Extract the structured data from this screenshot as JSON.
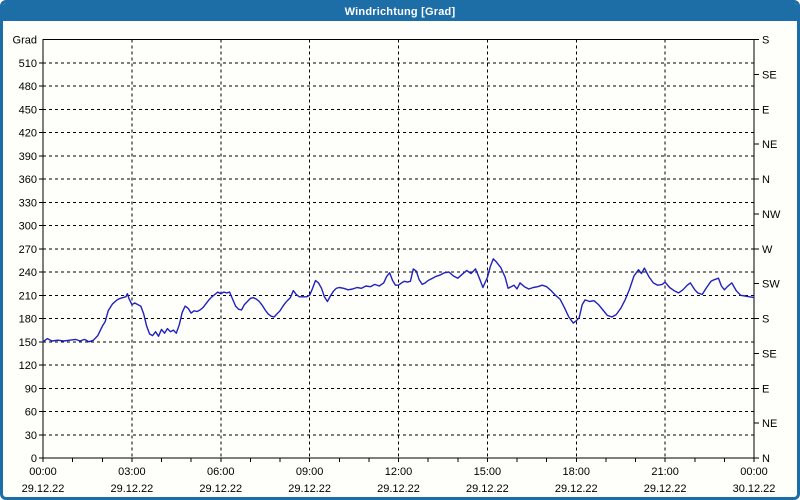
{
  "window": {
    "title": "Windrichtung [Grad]"
  },
  "colors": {
    "frame": "#1d6da6",
    "titlebar_bg": "#1d6da6",
    "title_text": "#ffffff",
    "plot_bg": "#fefefa",
    "axis": "#000000",
    "grid": "#000000",
    "label_text": "#000000",
    "series_line": "#2122bd"
  },
  "chart_data": {
    "type": "line",
    "title": "Windrichtung [Grad]",
    "grid": "dashed",
    "legend": "none",
    "y_axis_left": {
      "label": "Grad",
      "min": 0,
      "max": 540,
      "tick_step": 30
    },
    "y_axis_right": {
      "tick_step": 45,
      "labels_top_to_bottom": [
        "S",
        "SE",
        "E",
        "NE",
        "N",
        "NW",
        "W",
        "SW",
        "S",
        "SE",
        "E",
        "NE",
        "N"
      ]
    },
    "x_axis": {
      "min_hours": 0,
      "max_hours": 24,
      "major_step_hours": 3,
      "minor_tick_hours": 1,
      "major_labels": [
        {
          "time": "00:00",
          "date": "29.12.22"
        },
        {
          "time": "03:00",
          "date": "29.12.22"
        },
        {
          "time": "06:00",
          "date": "29.12.22"
        },
        {
          "time": "09:00",
          "date": "29.12.22"
        },
        {
          "time": "12:00",
          "date": "29.12.22"
        },
        {
          "time": "15:00",
          "date": "29.12.22"
        },
        {
          "time": "18:00",
          "date": "29.12.22"
        },
        {
          "time": "21:00",
          "date": "29.12.22"
        },
        {
          "time": "00:00",
          "date": "30.12.22"
        }
      ]
    },
    "series": [
      {
        "name": "Windrichtung",
        "unit": "Grad",
        "color": "#2122bd",
        "points": [
          [
            0,
            150
          ],
          [
            0.15,
            154
          ],
          [
            0.3,
            151
          ],
          [
            0.5,
            152
          ],
          [
            0.7,
            151
          ],
          [
            0.9,
            152
          ],
          [
            1.1,
            153
          ],
          [
            1.25,
            151
          ],
          [
            1.4,
            153
          ],
          [
            1.55,
            150
          ],
          [
            1.7,
            152
          ],
          [
            1.85,
            158
          ],
          [
            2,
            170
          ],
          [
            2.1,
            176
          ],
          [
            2.2,
            190
          ],
          [
            2.35,
            199
          ],
          [
            2.5,
            204
          ],
          [
            2.6,
            206
          ],
          [
            2.7,
            207
          ],
          [
            2.8,
            208
          ],
          [
            2.85,
            212
          ],
          [
            2.9,
            206
          ],
          [
            3,
            198
          ],
          [
            3.1,
            200
          ],
          [
            3.2,
            198
          ],
          [
            3.3,
            196
          ],
          [
            3.4,
            186
          ],
          [
            3.5,
            170
          ],
          [
            3.6,
            160
          ],
          [
            3.7,
            158
          ],
          [
            3.8,
            163
          ],
          [
            3.9,
            157
          ],
          [
            4,
            166
          ],
          [
            4.1,
            161
          ],
          [
            4.2,
            167
          ],
          [
            4.3,
            163
          ],
          [
            4.4,
            165
          ],
          [
            4.5,
            161
          ],
          [
            4.6,
            172
          ],
          [
            4.7,
            188
          ],
          [
            4.8,
            196
          ],
          [
            4.9,
            193
          ],
          [
            5,
            187
          ],
          [
            5.1,
            190
          ],
          [
            5.2,
            189
          ],
          [
            5.3,
            191
          ],
          [
            5.4,
            194
          ],
          [
            5.5,
            199
          ],
          [
            5.6,
            204
          ],
          [
            5.7,
            208
          ],
          [
            5.8,
            211
          ],
          [
            5.9,
            214
          ],
          [
            6,
            212
          ],
          [
            6.1,
            214
          ],
          [
            6.2,
            213
          ],
          [
            6.3,
            214
          ],
          [
            6.4,
            205
          ],
          [
            6.5,
            196
          ],
          [
            6.6,
            192
          ],
          [
            6.7,
            191
          ],
          [
            6.8,
            198
          ],
          [
            6.9,
            202
          ],
          [
            7,
            206
          ],
          [
            7.1,
            207
          ],
          [
            7.2,
            205
          ],
          [
            7.3,
            202
          ],
          [
            7.4,
            197
          ],
          [
            7.5,
            191
          ],
          [
            7.6,
            186
          ],
          [
            7.7,
            183
          ],
          [
            7.8,
            182
          ],
          [
            7.9,
            186
          ],
          [
            8,
            190
          ],
          [
            8.1,
            196
          ],
          [
            8.2,
            201
          ],
          [
            8.3,
            205
          ],
          [
            8.35,
            207
          ],
          [
            8.45,
            216
          ],
          [
            8.55,
            211
          ],
          [
            8.65,
            208
          ],
          [
            8.8,
            208
          ],
          [
            8.9,
            208
          ],
          [
            9,
            210
          ],
          [
            9.1,
            219
          ],
          [
            9.2,
            229
          ],
          [
            9.3,
            226
          ],
          [
            9.4,
            219
          ],
          [
            9.5,
            208
          ],
          [
            9.6,
            202
          ],
          [
            9.7,
            209
          ],
          [
            9.8,
            215
          ],
          [
            9.9,
            219
          ],
          [
            10,
            220
          ],
          [
            10.15,
            219
          ],
          [
            10.3,
            217
          ],
          [
            10.45,
            218
          ],
          [
            10.6,
            220
          ],
          [
            10.75,
            219
          ],
          [
            10.9,
            222
          ],
          [
            11.05,
            221
          ],
          [
            11.2,
            224
          ],
          [
            11.35,
            222
          ],
          [
            11.5,
            226
          ],
          [
            11.6,
            234
          ],
          [
            11.7,
            239
          ],
          [
            11.8,
            229
          ],
          [
            11.9,
            223
          ],
          [
            12,
            223
          ],
          [
            12.1,
            226
          ],
          [
            12.2,
            228
          ],
          [
            12.3,
            227
          ],
          [
            12.4,
            228
          ],
          [
            12.5,
            244
          ],
          [
            12.6,
            241
          ],
          [
            12.7,
            230
          ],
          [
            12.8,
            224
          ],
          [
            12.9,
            226
          ],
          [
            13,
            229
          ],
          [
            13.1,
            231
          ],
          [
            13.25,
            234
          ],
          [
            13.4,
            236
          ],
          [
            13.55,
            239
          ],
          [
            13.7,
            240
          ],
          [
            13.85,
            235
          ],
          [
            14,
            232
          ],
          [
            14.15,
            237
          ],
          [
            14.3,
            242
          ],
          [
            14.45,
            238
          ],
          [
            14.6,
            244
          ],
          [
            14.75,
            230
          ],
          [
            14.85,
            220
          ],
          [
            15,
            233
          ],
          [
            15.1,
            247
          ],
          [
            15.2,
            257
          ],
          [
            15.3,
            253
          ],
          [
            15.45,
            246
          ],
          [
            15.6,
            233
          ],
          [
            15.7,
            219
          ],
          [
            15.8,
            221
          ],
          [
            15.9,
            223
          ],
          [
            16,
            218
          ],
          [
            16.1,
            226
          ],
          [
            16.25,
            221
          ],
          [
            16.4,
            218
          ],
          [
            16.55,
            220
          ],
          [
            16.7,
            221
          ],
          [
            16.85,
            223
          ],
          [
            17,
            221
          ],
          [
            17.15,
            216
          ],
          [
            17.3,
            210
          ],
          [
            17.45,
            205
          ],
          [
            17.6,
            194
          ],
          [
            17.75,
            182
          ],
          [
            17.9,
            174
          ],
          [
            18,
            177
          ],
          [
            18.1,
            181
          ],
          [
            18.2,
            198
          ],
          [
            18.3,
            204
          ],
          [
            18.45,
            202
          ],
          [
            18.6,
            203
          ],
          [
            18.75,
            198
          ],
          [
            18.9,
            191
          ],
          [
            19.05,
            184
          ],
          [
            19.2,
            182
          ],
          [
            19.35,
            185
          ],
          [
            19.5,
            193
          ],
          [
            19.65,
            204
          ],
          [
            19.8,
            218
          ],
          [
            19.95,
            235
          ],
          [
            20.1,
            243
          ],
          [
            20.2,
            238
          ],
          [
            20.3,
            245
          ],
          [
            20.45,
            234
          ],
          [
            20.6,
            226
          ],
          [
            20.75,
            223
          ],
          [
            20.9,
            224
          ],
          [
            21,
            227
          ],
          [
            21.15,
            220
          ],
          [
            21.3,
            216
          ],
          [
            21.45,
            213
          ],
          [
            21.6,
            217
          ],
          [
            21.75,
            223
          ],
          [
            21.85,
            226
          ],
          [
            22,
            217
          ],
          [
            22.1,
            213
          ],
          [
            22.25,
            211
          ],
          [
            22.4,
            220
          ],
          [
            22.55,
            228
          ],
          [
            22.65,
            230
          ],
          [
            22.8,
            232
          ],
          [
            22.9,
            222
          ],
          [
            23,
            217
          ],
          [
            23.1,
            221
          ],
          [
            23.25,
            226
          ],
          [
            23.4,
            216
          ],
          [
            23.55,
            210
          ],
          [
            23.7,
            209
          ],
          [
            23.85,
            208
          ],
          [
            24,
            207
          ]
        ]
      }
    ]
  }
}
